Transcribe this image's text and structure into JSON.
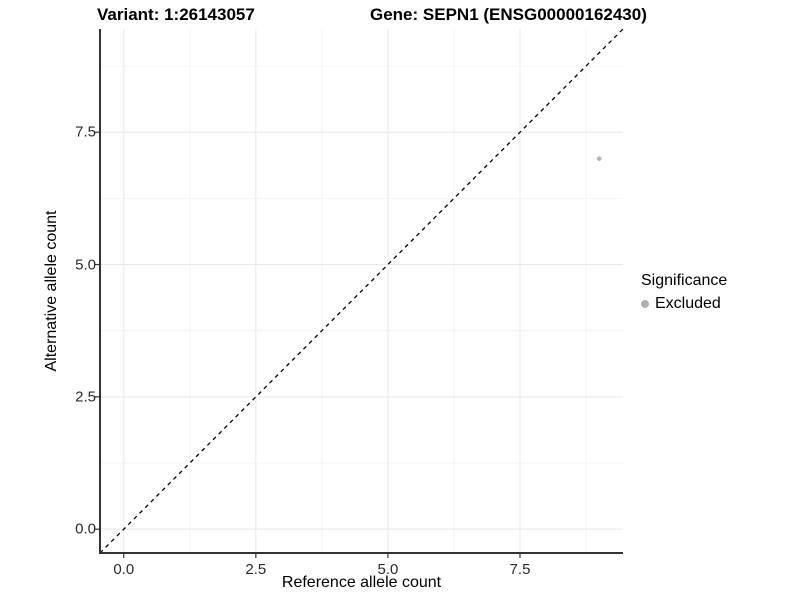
{
  "chart_data": {
    "type": "scatter",
    "title_left": "Variant: 1:26143057",
    "title_right": "Gene: SEPN1 (ENSG00000162430)",
    "xlabel": "Reference allele count",
    "ylabel": "Alternative allele count",
    "xlim": [
      -0.45,
      9.45
    ],
    "ylim": [
      -0.45,
      9.45
    ],
    "x_ticks": [
      0.0,
      2.5,
      5.0,
      7.5
    ],
    "y_ticks": [
      0.0,
      2.5,
      5.0,
      7.5
    ],
    "x_tick_labels": [
      "0.0",
      "2.5",
      "5.0",
      "7.5"
    ],
    "y_tick_labels": [
      "0.0",
      "2.5",
      "5.0",
      "7.5"
    ],
    "minor_ticks": [
      1.25,
      3.75,
      6.25,
      8.75
    ],
    "grid": true,
    "points": [
      {
        "x": 9,
        "y": 7,
        "category": "Excluded",
        "color": "#b5b5b5"
      }
    ],
    "reference_line": {
      "slope": 1,
      "intercept": 0,
      "style": "dashed",
      "color": "#000000"
    },
    "legend": {
      "position": "right",
      "title": "Significance",
      "items": [
        {
          "label": "Excluded",
          "color": "#b0b0b0"
        }
      ]
    },
    "colors": {
      "grid_major": "#e9e9e9",
      "grid_minor": "#f4f4f4",
      "axis_line": "#333333",
      "tick_mark": "#333333",
      "background": "#ffffff"
    }
  }
}
